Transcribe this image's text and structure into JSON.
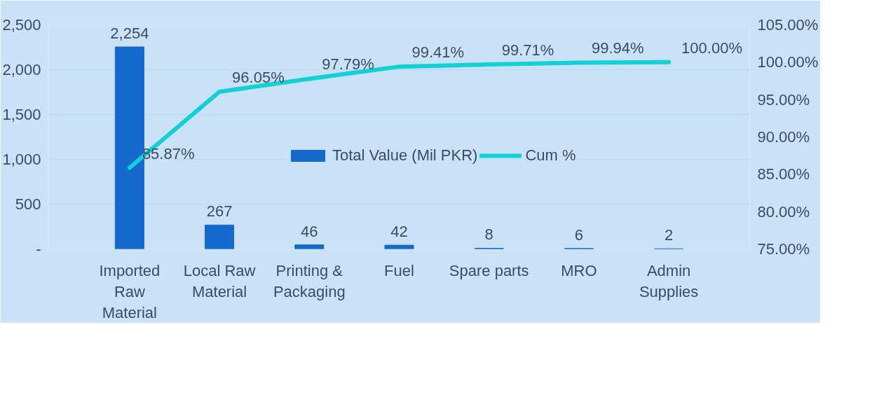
{
  "chart_data": {
    "type": "bar",
    "categories": [
      "Imported Raw Material",
      "Local Raw Material",
      "Printing & Packaging",
      "Fuel",
      "Spare parts",
      "MRO",
      "Admin Supplies"
    ],
    "series": [
      {
        "name": "Total Value (Mil PKR)",
        "color": "#1568cc",
        "values": [
          2254,
          267,
          46,
          42,
          8,
          6,
          2
        ],
        "value_labels": [
          "2,254",
          "267",
          "46",
          "42",
          "8",
          "6",
          "2"
        ]
      },
      {
        "name": "Cum %",
        "type": "line",
        "axis": "y2",
        "color": "#12cfd8",
        "values": [
          85.87,
          96.05,
          97.79,
          99.41,
          99.71,
          99.94,
          100.0
        ],
        "value_labels": [
          "85.87%",
          "96.05%",
          "97.79%",
          "99.41%",
          "99.71%",
          "99.94%",
          "100.00%"
        ]
      }
    ],
    "ylim": [
      0,
      2500
    ],
    "yticks": [
      {
        "value": 0,
        "label": "-"
      },
      {
        "value": 500,
        "label": "500"
      },
      {
        "value": 1000,
        "label": "1,000"
      },
      {
        "value": 1500,
        "label": "1,500"
      },
      {
        "value": 2000,
        "label": "2,000"
      },
      {
        "value": 2500,
        "label": "2,500"
      }
    ],
    "y2lim": [
      75,
      105
    ],
    "y2ticks": [
      {
        "value": 75,
        "label": "75.00%"
      },
      {
        "value": 80,
        "label": "80.00%"
      },
      {
        "value": 85,
        "label": "85.00%"
      },
      {
        "value": 90,
        "label": "90.00%"
      },
      {
        "value": 95,
        "label": "95.00%"
      },
      {
        "value": 100,
        "label": "100.00%"
      },
      {
        "value": 105,
        "label": "105.00%"
      }
    ],
    "grid": "y",
    "legend": "bottom"
  }
}
